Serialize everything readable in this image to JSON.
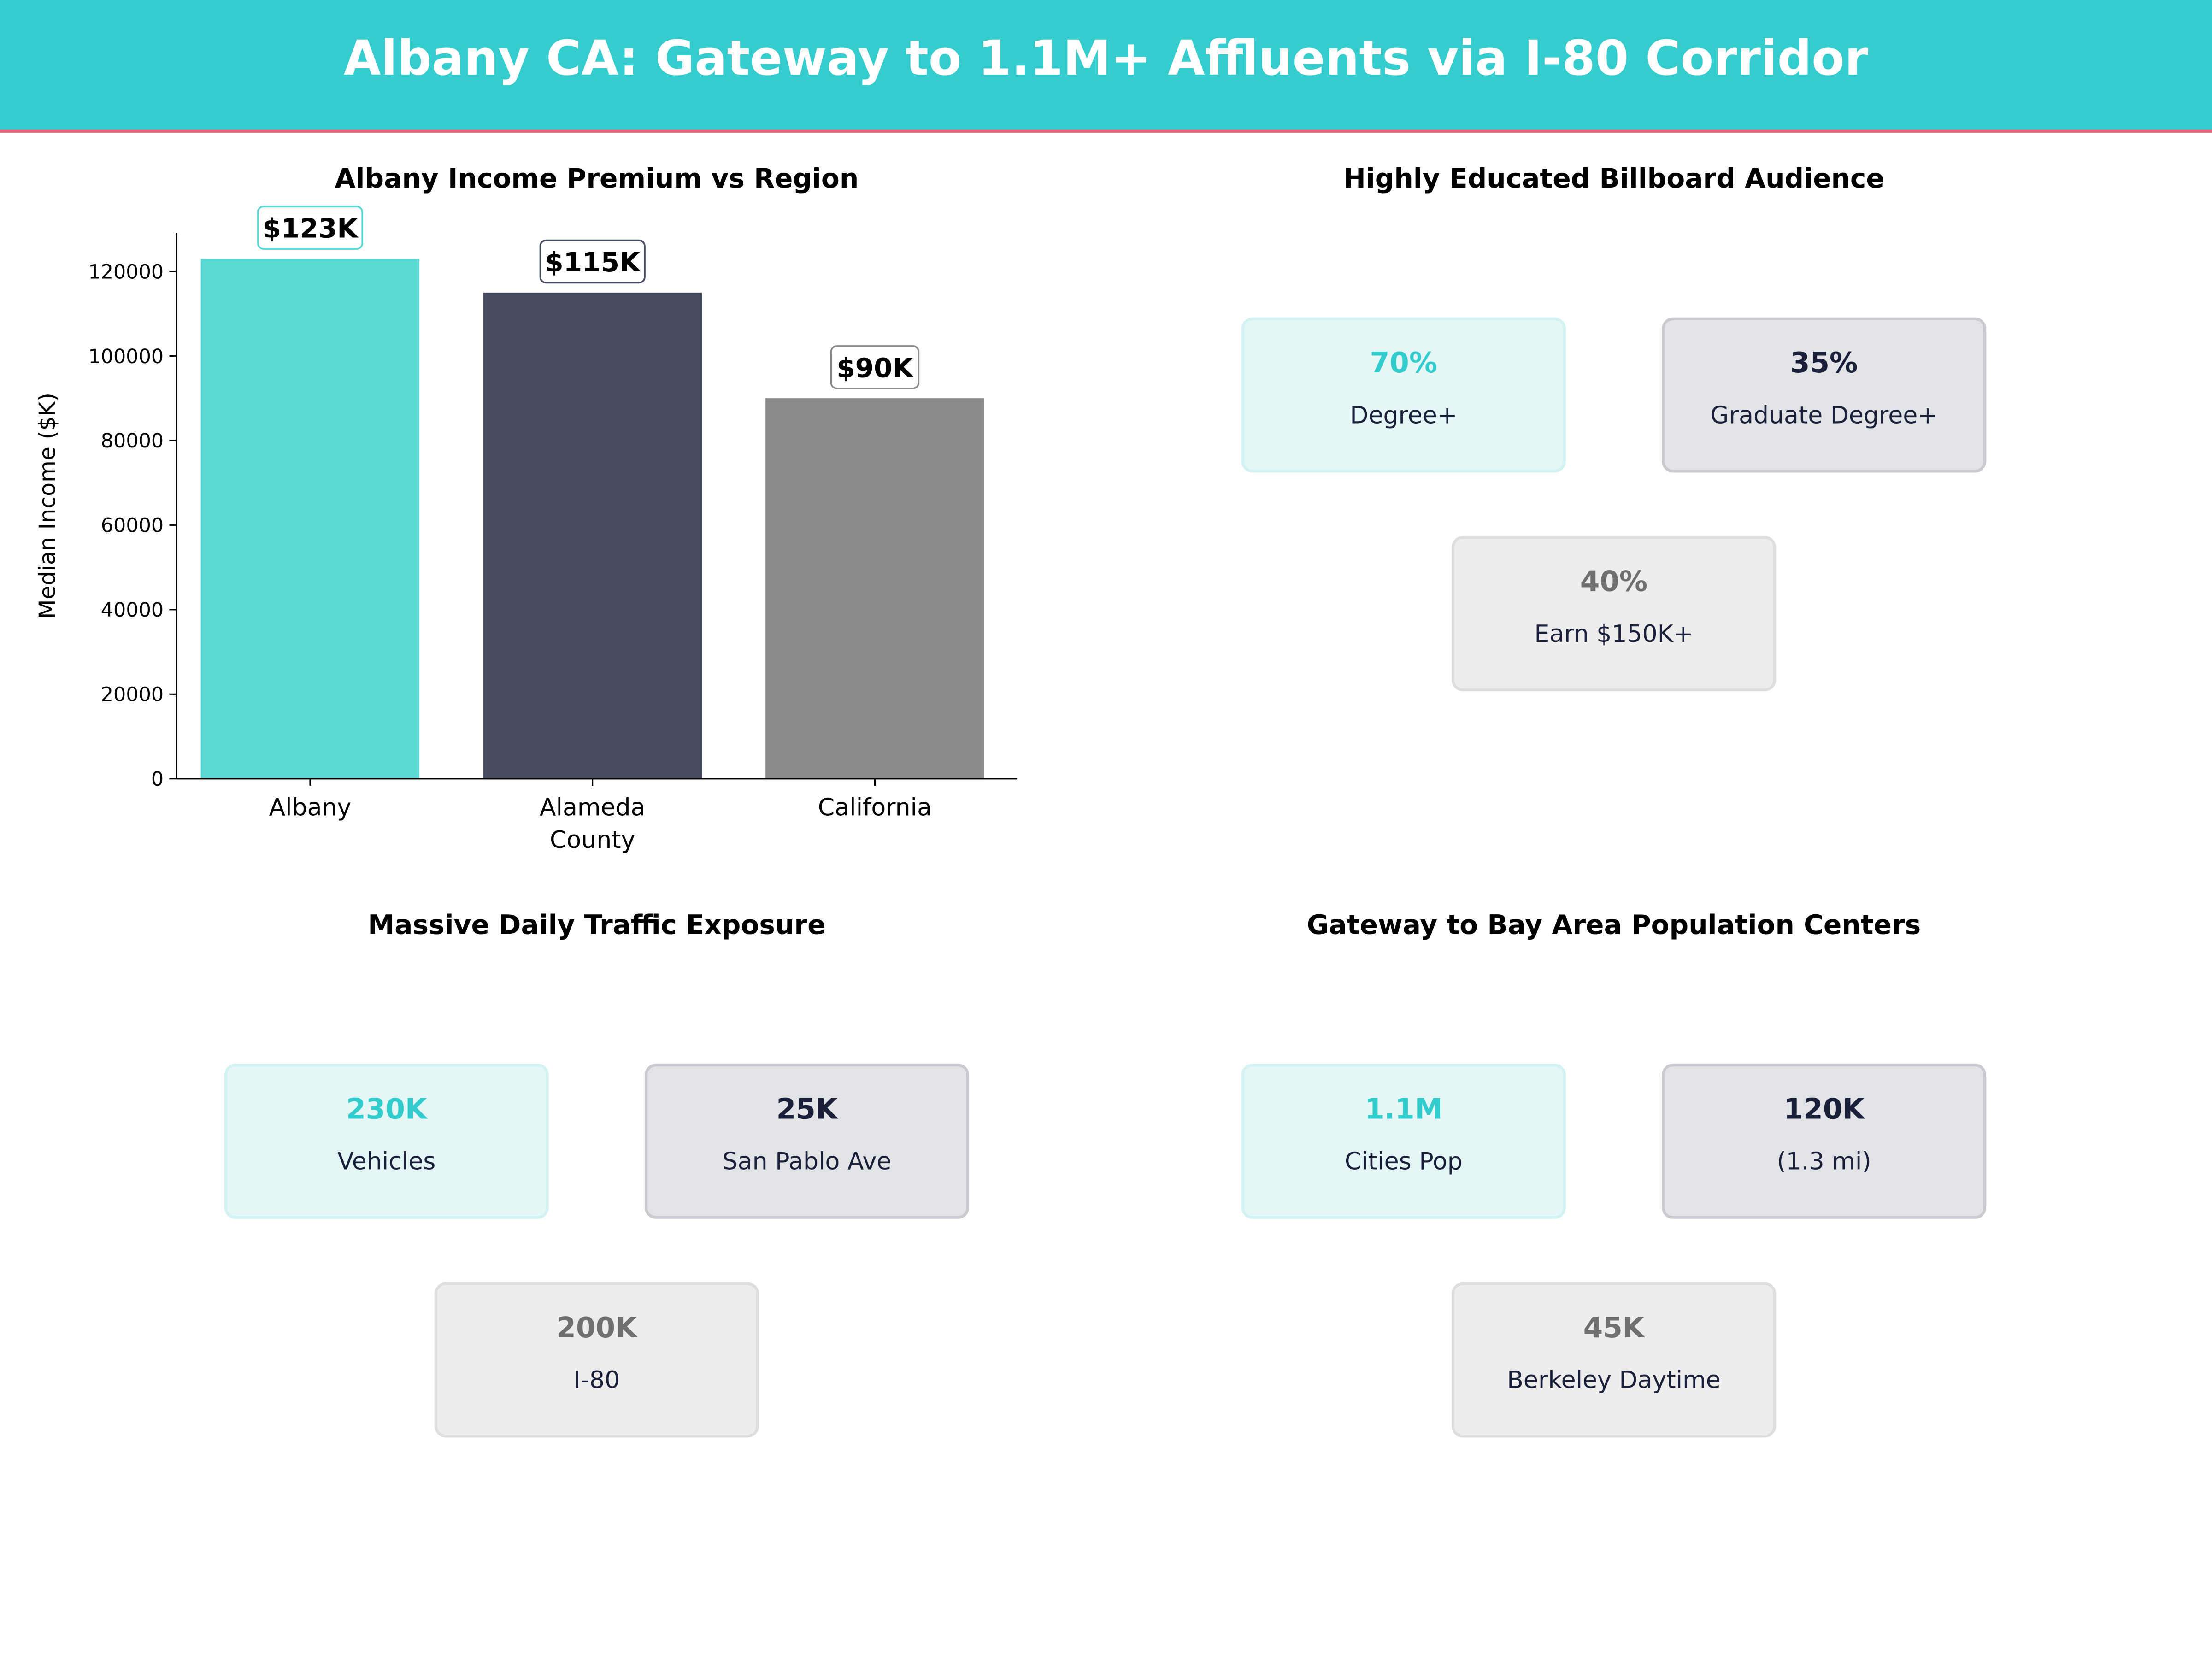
{
  "header": {
    "title": "Albany CA: Gateway to 1.1M+ Affluents via I-80 Corridor"
  },
  "colors": {
    "accent": "#34CCCC",
    "rule": "#E86373",
    "dark": "#464B60",
    "grey": "#8A8A8A"
  },
  "chart_data": {
    "type": "bar",
    "title": "Albany Income Premium vs Region",
    "xlabel": "",
    "ylabel": "Median Income ($K)",
    "categories": [
      "Albany",
      "Alameda\nCounty",
      "California"
    ],
    "values": [
      123000,
      115000,
      90000
    ],
    "data_labels": [
      "$123K",
      "$115K",
      "$90K"
    ],
    "bar_colors": [
      "#5CD8D4",
      "#464B60",
      "#8A8A8A"
    ],
    "label_border_colors": [
      "#5CD8D4",
      "#464B60",
      "#8A8A8A"
    ],
    "ylim": [
      0,
      129150
    ],
    "yticks": [
      0,
      20000,
      40000,
      60000,
      80000,
      100000,
      120000
    ],
    "grid": false,
    "legend": "none"
  },
  "panels": {
    "education": {
      "title": "Highly Educated Billboard Audience",
      "cards": [
        {
          "value": "70%",
          "label": "Degree+"
        },
        {
          "value": "35%",
          "label": "Graduate Degree+"
        },
        {
          "value": "40%",
          "label": "Earn $150K+"
        }
      ]
    },
    "traffic": {
      "title": "Massive Daily Traffic Exposure",
      "cards": [
        {
          "value": "230K",
          "label": "Vehicles"
        },
        {
          "value": "25K",
          "label": "San Pablo Ave"
        },
        {
          "value": "200K",
          "label": "I-80"
        }
      ]
    },
    "population": {
      "title": "Gateway to Bay Area Population Centers",
      "cards": [
        {
          "value": "1.1M",
          "label": "Cities Pop"
        },
        {
          "value": "120K",
          "label": "(1.3 mi)"
        },
        {
          "value": "45K",
          "label": "Berkeley Daytime"
        }
      ]
    }
  }
}
